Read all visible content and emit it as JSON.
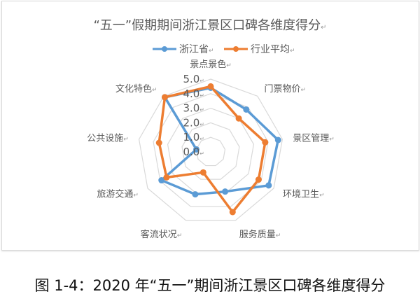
{
  "chart_data": {
    "type": "radar",
    "title": "“五一”假期期间浙江景区口碑各维度得分",
    "paragraph_mark": "↵",
    "categories": [
      "景点景色",
      "门票物价",
      "景区管理",
      "环境卫生",
      "服务质量",
      "客流状况",
      "旅游交通",
      "公共设施",
      "文化特色"
    ],
    "rlim": [
      0,
      5
    ],
    "ticks": [
      "0.0",
      "1.0",
      "2.0",
      "3.0",
      "4.0",
      "5.0"
    ],
    "grid": true,
    "legend_position": "top",
    "series": [
      {
        "name": "浙江省",
        "color": "#5B9BD5",
        "values": [
          4.4,
          3.8,
          4.7,
          4.6,
          2.9,
          3.1,
          3.9,
          1.0,
          4.9
        ]
      },
      {
        "name": "行业平均",
        "color": "#ED7D31",
        "values": [
          4.5,
          3.0,
          3.8,
          3.8,
          4.4,
          1.5,
          3.5,
          3.6,
          4.9
        ]
      }
    ]
  },
  "caption": "图 1-4：2020 年“五一”期间浙江景区口碑各维度得分"
}
